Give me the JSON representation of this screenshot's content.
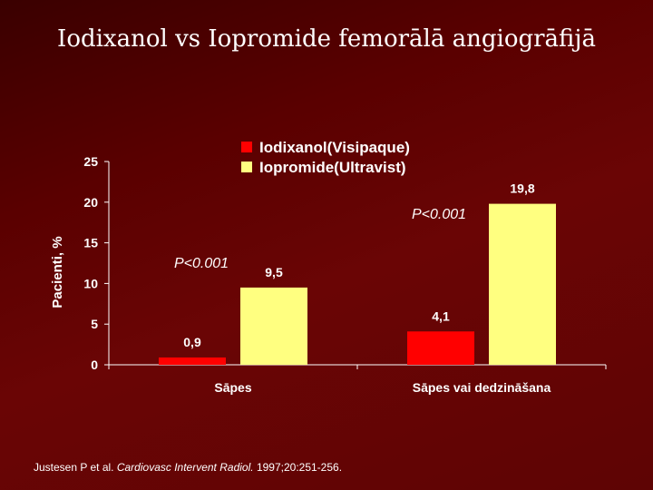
{
  "slide": {
    "title": "Iodixanol vs Iopromide femorālā angiogrāfijā"
  },
  "chart_data": {
    "type": "bar",
    "categories": [
      "Sāpes",
      "Sāpes vai dedzināšana"
    ],
    "series": [
      {
        "name": "Iodixanol(Visipaque)",
        "color": "#ff0000",
        "values": [
          0.9,
          4.1
        ],
        "labels": [
          "0,9",
          "4,1"
        ]
      },
      {
        "name": "Iopromide(Ultravist)",
        "color": "#ffff80",
        "values": [
          9.5,
          19.8
        ],
        "labels": [
          "9,5",
          "19,8"
        ]
      }
    ],
    "ylabel": "Pacienti, %",
    "ylim": [
      0,
      25
    ],
    "yticks": [
      "0",
      "5",
      "10",
      "15",
      "20",
      "25"
    ],
    "grid": false,
    "legend_position": "top-right",
    "annotations": [
      "P<0.001",
      "P<0.001"
    ]
  },
  "citation": {
    "authors": "Justesen P et al.",
    "journal": "Cardiovasc Intervent Radiol.",
    "details": "1997;20:251-256."
  }
}
